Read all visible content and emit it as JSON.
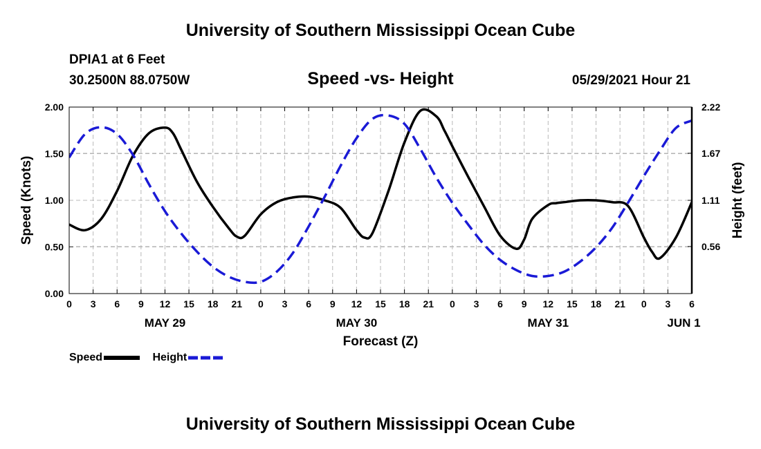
{
  "header": {
    "title": "University of Southern Mississippi Ocean Cube",
    "station": "DPIA1 at 6 Feet",
    "coords": "30.2500N  88.0750W",
    "subtitle": "Speed -vs- Height",
    "datetime": "05/29/2021 Hour 21"
  },
  "footer": {
    "title": "University of Southern Mississippi Ocean Cube"
  },
  "legend": {
    "speed": "Speed",
    "height": "Height"
  },
  "colors": {
    "speed": "#000000",
    "height": "#1a1ad6",
    "grid": "#b8b8b8"
  },
  "chart_data": {
    "type": "line",
    "title": "Speed -vs- Height",
    "xlabel": "Forecast (Z)",
    "ylabel": "Speed (Knots)",
    "y2label": "Height (feet)",
    "xlim": [
      0,
      78
    ],
    "ylim": [
      0,
      2.0
    ],
    "y2lim": [
      0,
      2.22
    ],
    "y_ticks": [
      "0.00",
      "0.50",
      "1.00",
      "1.50",
      "2.00"
    ],
    "y2_ticks": [
      "0.56",
      "1.11",
      "1.67",
      "2.22"
    ],
    "x_tick_labels": [
      "0",
      "3",
      "6",
      "9",
      "12",
      "15",
      "18",
      "21",
      "0",
      "3",
      "6",
      "9",
      "12",
      "15",
      "18",
      "21",
      "0",
      "3",
      "6",
      "9",
      "12",
      "15",
      "18",
      "21",
      "0",
      "3",
      "6"
    ],
    "date_labels": [
      {
        "hour": 12,
        "label": "MAY 29"
      },
      {
        "hour": 36,
        "label": "MAY 30"
      },
      {
        "hour": 60,
        "label": "MAY 31"
      },
      {
        "hour": 77,
        "label": "JUN 1"
      }
    ],
    "grid": true,
    "series": [
      {
        "name": "Speed",
        "axis": "left",
        "style": "solid",
        "x": [
          0,
          2,
          4,
          6,
          8,
          10,
          12,
          13,
          14,
          16,
          18,
          20,
          21,
          22,
          24,
          26,
          28,
          30,
          32,
          34,
          36,
          37,
          38,
          40,
          42,
          44,
          46,
          47,
          48,
          50,
          52,
          54,
          56,
          57,
          58,
          60,
          61,
          62,
          64,
          66,
          68,
          70,
          72,
          73,
          74,
          76,
          78
        ],
        "values": [
          0.74,
          0.68,
          0.8,
          1.1,
          1.48,
          1.72,
          1.78,
          1.72,
          1.55,
          1.2,
          0.93,
          0.7,
          0.61,
          0.62,
          0.85,
          0.98,
          1.03,
          1.04,
          1.0,
          0.92,
          0.68,
          0.6,
          0.65,
          1.1,
          1.62,
          1.96,
          1.9,
          1.75,
          1.58,
          1.25,
          0.93,
          0.62,
          0.48,
          0.58,
          0.8,
          0.95,
          0.97,
          0.98,
          1.0,
          1.0,
          0.98,
          0.94,
          0.6,
          0.45,
          0.38,
          0.6,
          0.98
        ]
      },
      {
        "name": "Height",
        "axis": "right",
        "style": "dashed",
        "x": [
          0,
          2,
          4,
          6,
          8,
          10,
          12,
          14,
          16,
          18,
          20,
          22,
          24,
          26,
          28,
          30,
          32,
          34,
          36,
          38,
          40,
          42,
          44,
          46,
          48,
          50,
          52,
          54,
          56,
          58,
          60,
          62,
          64,
          66,
          68,
          70,
          72,
          74,
          76,
          78
        ],
        "values": [
          1.62,
          1.9,
          1.98,
          1.9,
          1.65,
          1.3,
          0.98,
          0.72,
          0.5,
          0.32,
          0.2,
          0.14,
          0.14,
          0.26,
          0.48,
          0.8,
          1.15,
          1.52,
          1.85,
          2.08,
          2.12,
          2.02,
          1.72,
          1.38,
          1.08,
          0.82,
          0.58,
          0.4,
          0.28,
          0.21,
          0.21,
          0.26,
          0.38,
          0.55,
          0.78,
          1.08,
          1.4,
          1.7,
          1.97,
          2.06
        ]
      }
    ]
  }
}
